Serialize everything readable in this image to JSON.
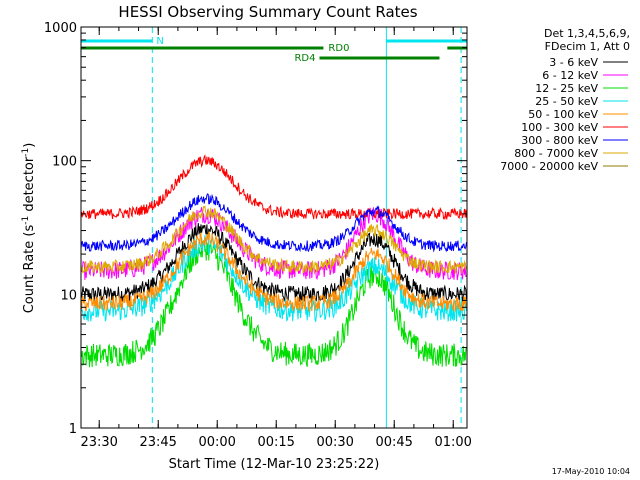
{
  "chart_data": {
    "type": "line",
    "title": "HESSI Observing Summary Count Rates",
    "xlabel": "Start Time (12-Mar-10 23:25:22)",
    "ylabel": "Count Rate (s⁻¹ detector⁻¹)",
    "ylabel_parts": {
      "main": "Count Rate (s",
      "exp1": "-1",
      "mid": " detector",
      "exp2": "-1",
      "end": ")"
    },
    "yscale": "log",
    "ylim": [
      1,
      1000
    ],
    "y_ticks": [
      {
        "value": 1,
        "label": "1"
      },
      {
        "value": 10,
        "label": "10"
      },
      {
        "value": 100,
        "label": "100"
      },
      {
        "value": 1000,
        "label": "1000"
      }
    ],
    "xlim": [
      "23:25:22",
      "01:03:30"
    ],
    "x_ticks": [
      {
        "time": "23:30",
        "label": "23:30"
      },
      {
        "time": "23:45",
        "label": "23:45"
      },
      {
        "time": "00:00",
        "label": "00:00"
      },
      {
        "time": "00:15",
        "label": "00:15"
      },
      {
        "time": "00:30",
        "label": "00:30"
      },
      {
        "time": "00:45",
        "label": "00:45"
      },
      {
        "time": "01:00",
        "label": "01:00"
      }
    ],
    "legend": {
      "placement": "right",
      "header": [
        "Det 1,3,4,5,6,9,",
        "FDecim 1, Att 0"
      ]
    },
    "night_markers": [
      {
        "time": "23:43:30"
      },
      {
        "time": "01:02:00"
      }
    ],
    "day_markers": [
      {
        "time": "00:43:00"
      }
    ],
    "flag_bars": [
      {
        "name": "N",
        "color": "#00e5ee",
        "row": 1,
        "segments": [
          [
            "23:25:22",
            "23:43:30"
          ],
          [
            "00:43:00",
            "01:03:30"
          ]
        ]
      },
      {
        "name": "RD0",
        "color": "#008000",
        "row": 2,
        "segments": [
          [
            "23:25:22",
            "00:27:00"
          ],
          [
            "00:58:30",
            "01:03:30"
          ]
        ]
      },
      {
        "name": "RD4",
        "color": "#008000",
        "row": 3,
        "segments": [
          [
            "00:26:00",
            "00:56:30"
          ]
        ]
      }
    ],
    "series": [
      {
        "name": "3 - 6 keV",
        "color": "#000000",
        "baseline": 10,
        "peak1": 31,
        "peak2": 26,
        "noise": 0.12
      },
      {
        "name": "6 - 12 keV",
        "color": "#ff00ff",
        "baseline": 15,
        "peak1": 40,
        "peak2": 40,
        "noise": 0.14
      },
      {
        "name": "12 - 25 keV",
        "color": "#00dd00",
        "baseline": 3.5,
        "peak1": 22,
        "peak2": 14,
        "noise": 0.18
      },
      {
        "name": "25 - 50 keV",
        "color": "#00e5ee",
        "baseline": 7.5,
        "peak1": 24,
        "peak2": 16,
        "noise": 0.16
      },
      {
        "name": "50 - 100 keV",
        "color": "#ff8c00",
        "baseline": 8.5,
        "peak1": 26,
        "peak2": 20,
        "noise": 0.12
      },
      {
        "name": "100 - 300 keV",
        "color": "#ff0000",
        "baseline": 40,
        "peak1": 100,
        "peak2": 40,
        "noise": 0.08
      },
      {
        "name": "300 - 800 keV",
        "color": "#0000ff",
        "baseline": 23,
        "peak1": 52,
        "peak2": 42,
        "noise": 0.08
      },
      {
        "name": "800 - 7000 keV",
        "color": "#ddaa00",
        "baseline": 16,
        "peak1": 42,
        "peak2": 30,
        "noise": 0.1
      },
      {
        "name": "7000 - 20000 keV",
        "color": "#8b7d00",
        "baseline": 1,
        "peak1": 1,
        "peak2": 1,
        "noise": 0.0
      }
    ]
  },
  "timestamp": "17-May-2010 10:04"
}
